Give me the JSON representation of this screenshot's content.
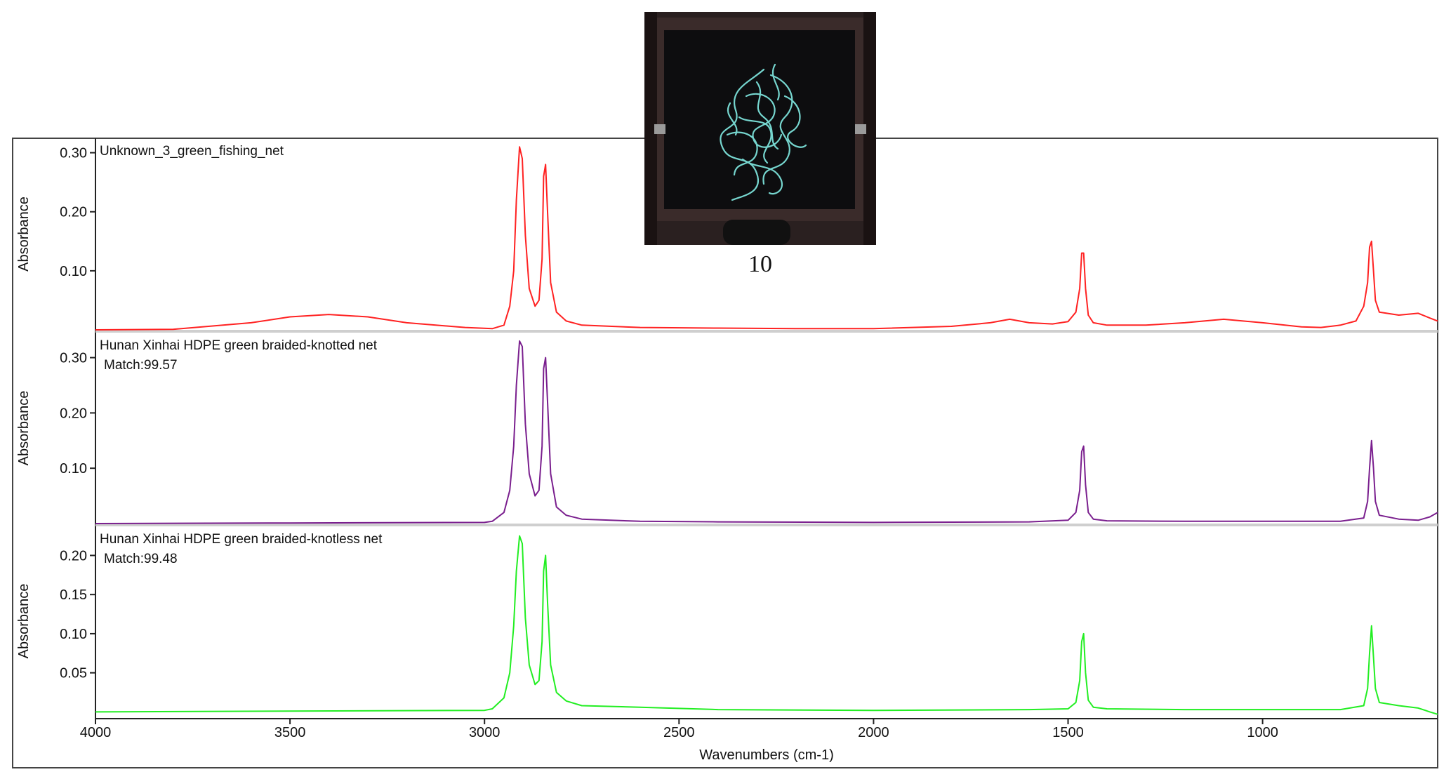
{
  "figure": {
    "photo_caption": "10",
    "photo_subject": "green fishing net sample on dark tray"
  },
  "chart_data": {
    "type": "line",
    "xlabel": "Wavenumbers (cm-1)",
    "xlim": [
      4000,
      550
    ],
    "x_direction": "reversed",
    "xticks": [
      4000,
      3500,
      3000,
      2500,
      2000,
      1500,
      1000
    ],
    "grid": false,
    "panels": [
      {
        "label": "Unknown_3_green_fishing_net",
        "match": "",
        "color": "#ff2222",
        "ylabel": "Absorbance",
        "ylim": [
          0.0,
          0.315
        ],
        "yticks": [
          "0.10",
          "0.20",
          "0.30"
        ],
        "x": [
          4000,
          3800,
          3600,
          3500,
          3400,
          3300,
          3200,
          3050,
          2980,
          2950,
          2935,
          2925,
          2918,
          2910,
          2903,
          2895,
          2885,
          2870,
          2860,
          2852,
          2848,
          2843,
          2838,
          2830,
          2815,
          2790,
          2750,
          2600,
          2400,
          2200,
          2000,
          1800,
          1700,
          1650,
          1600,
          1540,
          1500,
          1480,
          1470,
          1465,
          1460,
          1455,
          1448,
          1435,
          1400,
          1300,
          1200,
          1100,
          1000,
          900,
          850,
          800,
          760,
          740,
          730,
          725,
          720,
          715,
          710,
          700,
          650,
          600,
          570,
          550
        ],
        "y": [
          0.0,
          0.001,
          0.012,
          0.022,
          0.026,
          0.022,
          0.012,
          0.004,
          0.002,
          0.008,
          0.04,
          0.1,
          0.22,
          0.31,
          0.29,
          0.16,
          0.07,
          0.04,
          0.05,
          0.12,
          0.26,
          0.28,
          0.2,
          0.08,
          0.03,
          0.015,
          0.008,
          0.004,
          0.003,
          0.002,
          0.002,
          0.006,
          0.012,
          0.018,
          0.012,
          0.01,
          0.014,
          0.03,
          0.07,
          0.13,
          0.13,
          0.07,
          0.025,
          0.012,
          0.008,
          0.008,
          0.012,
          0.018,
          0.012,
          0.005,
          0.004,
          0.008,
          0.015,
          0.04,
          0.08,
          0.14,
          0.15,
          0.1,
          0.05,
          0.03,
          0.025,
          0.028,
          0.02,
          0.015
        ]
      },
      {
        "label": "Hunan Xinhai HDPE green braided-knotted net",
        "match": "Match:99.57",
        "color": "#7a1f8e",
        "ylabel": "Absorbance",
        "ylim": [
          0.0,
          0.335
        ],
        "yticks": [
          "0.10",
          "0.20",
          "0.30"
        ],
        "x": [
          4000,
          3500,
          3000,
          2980,
          2950,
          2935,
          2925,
          2918,
          2910,
          2903,
          2895,
          2885,
          2870,
          2860,
          2852,
          2848,
          2843,
          2838,
          2830,
          2815,
          2790,
          2750,
          2600,
          2400,
          2000,
          1600,
          1500,
          1480,
          1470,
          1465,
          1460,
          1455,
          1448,
          1435,
          1400,
          1200,
          1000,
          800,
          740,
          730,
          725,
          720,
          715,
          710,
          700,
          650,
          600,
          570,
          550
        ],
        "y": [
          0.0,
          0.001,
          0.002,
          0.004,
          0.02,
          0.06,
          0.14,
          0.25,
          0.33,
          0.32,
          0.18,
          0.09,
          0.05,
          0.06,
          0.14,
          0.28,
          0.3,
          0.22,
          0.09,
          0.03,
          0.015,
          0.008,
          0.004,
          0.003,
          0.002,
          0.003,
          0.006,
          0.02,
          0.06,
          0.13,
          0.14,
          0.07,
          0.02,
          0.008,
          0.005,
          0.004,
          0.004,
          0.004,
          0.01,
          0.04,
          0.1,
          0.15,
          0.1,
          0.04,
          0.015,
          0.008,
          0.006,
          0.012,
          0.02
        ]
      },
      {
        "label": "Hunan Xinhai HDPE green braided-knotless net",
        "match": "Match:99.48",
        "color": "#22ee22",
        "ylabel": "Absorbance",
        "ylim": [
          -0.005,
          0.23
        ],
        "yticks": [
          "0.05",
          "0.10",
          "0.15",
          "0.20"
        ],
        "x": [
          4000,
          3500,
          3000,
          2980,
          2950,
          2935,
          2925,
          2918,
          2910,
          2903,
          2895,
          2885,
          2870,
          2860,
          2852,
          2848,
          2843,
          2838,
          2830,
          2815,
          2790,
          2750,
          2600,
          2400,
          2000,
          1600,
          1500,
          1480,
          1470,
          1465,
          1460,
          1455,
          1448,
          1435,
          1400,
          1200,
          1000,
          800,
          740,
          730,
          725,
          720,
          715,
          710,
          700,
          650,
          600,
          570,
          550
        ],
        "y": [
          0.0,
          0.001,
          0.002,
          0.004,
          0.018,
          0.05,
          0.11,
          0.18,
          0.225,
          0.215,
          0.12,
          0.06,
          0.035,
          0.04,
          0.09,
          0.18,
          0.2,
          0.14,
          0.06,
          0.025,
          0.014,
          0.008,
          0.006,
          0.003,
          0.002,
          0.003,
          0.004,
          0.012,
          0.04,
          0.09,
          0.1,
          0.05,
          0.015,
          0.006,
          0.004,
          0.003,
          0.003,
          0.003,
          0.008,
          0.03,
          0.075,
          0.11,
          0.07,
          0.03,
          0.012,
          0.008,
          0.005,
          0.0,
          -0.003
        ]
      }
    ]
  }
}
